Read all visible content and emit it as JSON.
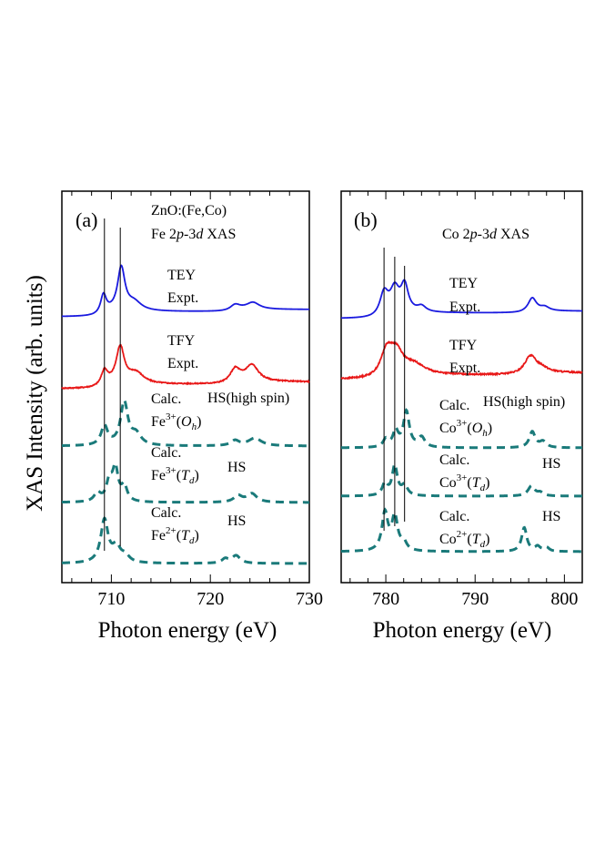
{
  "figure": {
    "ylabel": "XAS Intensity (arb. units)",
    "colors": {
      "tey": "#1a1adf",
      "tfy": "#e81818",
      "calc": "#1a7a7a",
      "line": "#000000"
    }
  },
  "chart_data": [
    {
      "type": "line",
      "panel": "(a)",
      "title_line1": "ZnO:(Fe,Co)",
      "title_line2_pre": "Fe 2",
      "title_line2_p": "p",
      "title_line2_mid": "-3",
      "title_line2_d": "d",
      "title_line2_post": " XAS",
      "xlabel": "Photon energy (eV)",
      "xlim": [
        705,
        730
      ],
      "xticks": [
        "710",
        "720",
        "730"
      ],
      "reference_energies": [
        709.3,
        710.9
      ],
      "series": [
        {
          "name": "TEY Expt.",
          "label1": "TEY",
          "label2": "Expt.",
          "style": "solid",
          "color": "tey",
          "offset": 4.0,
          "scale": 0.9,
          "peaks": [
            [
              709.2,
              0.45,
              0.35
            ],
            [
              711.0,
              1.0,
              0.45
            ],
            [
              712.3,
              0.2,
              0.9
            ],
            [
              722.5,
              0.12,
              0.6
            ],
            [
              724.3,
              0.16,
              0.8
            ]
          ],
          "edges": [
            [
              709.5,
              0.12
            ],
            [
              722.3,
              0.05
            ]
          ]
        },
        {
          "name": "TFY Expt.",
          "label1": "TFY",
          "label2": "Expt.",
          "style": "solid",
          "color": "tfy",
          "offset": 3.0,
          "scale": 0.9,
          "peaks": [
            [
              709.3,
              0.35,
              0.4
            ],
            [
              710.9,
              0.85,
              0.5
            ],
            [
              712.5,
              0.25,
              0.9
            ],
            [
              722.5,
              0.3,
              0.6
            ],
            [
              724.2,
              0.38,
              0.8
            ]
          ],
          "edges": [
            [
              709.5,
              0.1
            ],
            [
              722.3,
              0.06
            ]
          ],
          "noise": 0.012
        },
        {
          "name": "Calc. Fe3+(Oh)",
          "label1": "Calc.",
          "ion": "Fe",
          "charge": "3+",
          "site": "O",
          "site_sub": "h",
          "spin": "HS(high spin)",
          "style": "dashed",
          "color": "calc",
          "offset": 2.0,
          "scale": 0.9,
          "peaks": [
            [
              709.3,
              0.45,
              0.4
            ],
            [
              711.3,
              1.0,
              0.45
            ],
            [
              712.5,
              0.25,
              0.6
            ],
            [
              722.5,
              0.12,
              0.5
            ],
            [
              724.5,
              0.18,
              0.8
            ]
          ],
          "edges": []
        },
        {
          "name": "Calc. Fe3+(Td)",
          "label1": "Calc.",
          "ion": "Fe",
          "charge": "3+",
          "site": "T",
          "site_sub": "d",
          "spin": "HS",
          "style": "dashed",
          "color": "calc",
          "offset": 1.0,
          "scale": 0.9,
          "peaks": [
            [
              708.6,
              0.2,
              0.4
            ],
            [
              709.8,
              0.45,
              0.35
            ],
            [
              710.4,
              0.75,
              0.35
            ],
            [
              711.3,
              0.35,
              0.35
            ],
            [
              722.8,
              0.15,
              0.5
            ],
            [
              724.2,
              0.2,
              0.6
            ]
          ],
          "edges": []
        },
        {
          "name": "Calc. Fe2+(Td)",
          "label1": "Calc.",
          "ion": "Fe",
          "charge": "2+",
          "site": "T",
          "site_sub": "d",
          "spin": "HS",
          "style": "dashed",
          "color": "calc",
          "offset": 0.0,
          "scale": 0.9,
          "peaks": [
            [
              709.3,
              1.0,
              0.45
            ],
            [
              710.5,
              0.35,
              0.5
            ],
            [
              711.4,
              0.15,
              0.5
            ],
            [
              721.5,
              0.1,
              0.4
            ],
            [
              722.6,
              0.18,
              0.5
            ]
          ],
          "edges": []
        }
      ]
    },
    {
      "type": "line",
      "panel": "(b)",
      "title_line1": "",
      "title_line2_pre": "Co 2",
      "title_line2_p": "p",
      "title_line2_mid": "-3",
      "title_line2_d": "d",
      "title_line2_post": " XAS",
      "xlabel": "Photon energy (eV)",
      "xlim": [
        775,
        802
      ],
      "xticks": [
        "780",
        "790",
        "800"
      ],
      "reference_energies": [
        779.8,
        781.0,
        782.1
      ],
      "series": [
        {
          "name": "TEY Expt.",
          "label1": "TEY",
          "label2": "Expt.",
          "style": "solid",
          "color": "tey",
          "offset": 4.0,
          "scale": 0.85,
          "peaks": [
            [
              779.8,
              0.55,
              0.55
            ],
            [
              781.0,
              0.6,
              0.6
            ],
            [
              782.1,
              0.7,
              0.5
            ],
            [
              784.0,
              0.15,
              0.6
            ],
            [
              796.4,
              0.35,
              0.55
            ],
            [
              797.8,
              0.1,
              0.6
            ]
          ],
          "edges": [
            [
              779.5,
              0.15
            ],
            [
              795.8,
              0.05
            ]
          ]
        },
        {
          "name": "TFY Expt.",
          "label1": "TFY",
          "label2": "Expt.",
          "style": "solid",
          "color": "tfy",
          "offset": 3.0,
          "scale": 0.85,
          "peaks": [
            [
              780.1,
              0.6,
              0.8
            ],
            [
              781.2,
              0.55,
              0.9
            ],
            [
              783.2,
              0.25,
              1.4
            ],
            [
              796.2,
              0.45,
              0.8
            ],
            [
              797.5,
              0.1,
              0.8
            ]
          ],
          "edges": [
            [
              779.5,
              0.12
            ],
            [
              795.6,
              0.06
            ]
          ],
          "noise": 0.018
        },
        {
          "name": "Calc. Co3+(Oh)",
          "label1": "Calc.",
          "ion": "Co",
          "charge": "3+",
          "site": "O",
          "site_sub": "h",
          "spin": "HS(high spin)",
          "style": "dashed",
          "color": "calc",
          "offset": 2.0,
          "scale": 0.9,
          "peaks": [
            [
              780.0,
              0.2,
              0.35
            ],
            [
              781.1,
              0.4,
              0.35
            ],
            [
              782.3,
              0.9,
              0.4
            ],
            [
              784.0,
              0.25,
              0.45
            ],
            [
              796.4,
              0.4,
              0.4
            ],
            [
              797.6,
              0.15,
              0.45
            ]
          ],
          "edges": []
        },
        {
          "name": "Calc. Co3+(Td)",
          "label1": "Calc.",
          "ion": "Co",
          "charge": "3+",
          "site": "T",
          "site_sub": "d",
          "spin": "HS",
          "style": "dashed",
          "color": "calc",
          "offset": 1.0,
          "scale": 0.9,
          "peaks": [
            [
              779.9,
              0.3,
              0.35
            ],
            [
              781.0,
              0.75,
              0.35
            ],
            [
              782.1,
              0.25,
              0.4
            ],
            [
              796.3,
              0.25,
              0.45
            ],
            [
              797.3,
              0.08,
              0.4
            ]
          ],
          "edges": []
        },
        {
          "name": "Calc. Co2+(Td)",
          "label1": "Calc.",
          "ion": "Co",
          "charge": "2+",
          "site": "T",
          "site_sub": "d",
          "spin": "HS",
          "style": "dashed",
          "color": "calc",
          "offset": 0.0,
          "scale": 0.9,
          "peaks": [
            [
              779.9,
              0.95,
              0.4
            ],
            [
              781.0,
              0.85,
              0.4
            ],
            [
              782.0,
              0.2,
              0.4
            ],
            [
              795.5,
              0.6,
              0.35
            ],
            [
              797.0,
              0.12,
              0.35
            ],
            [
              798.0,
              0.1,
              0.35
            ]
          ],
          "edges": []
        }
      ]
    }
  ]
}
